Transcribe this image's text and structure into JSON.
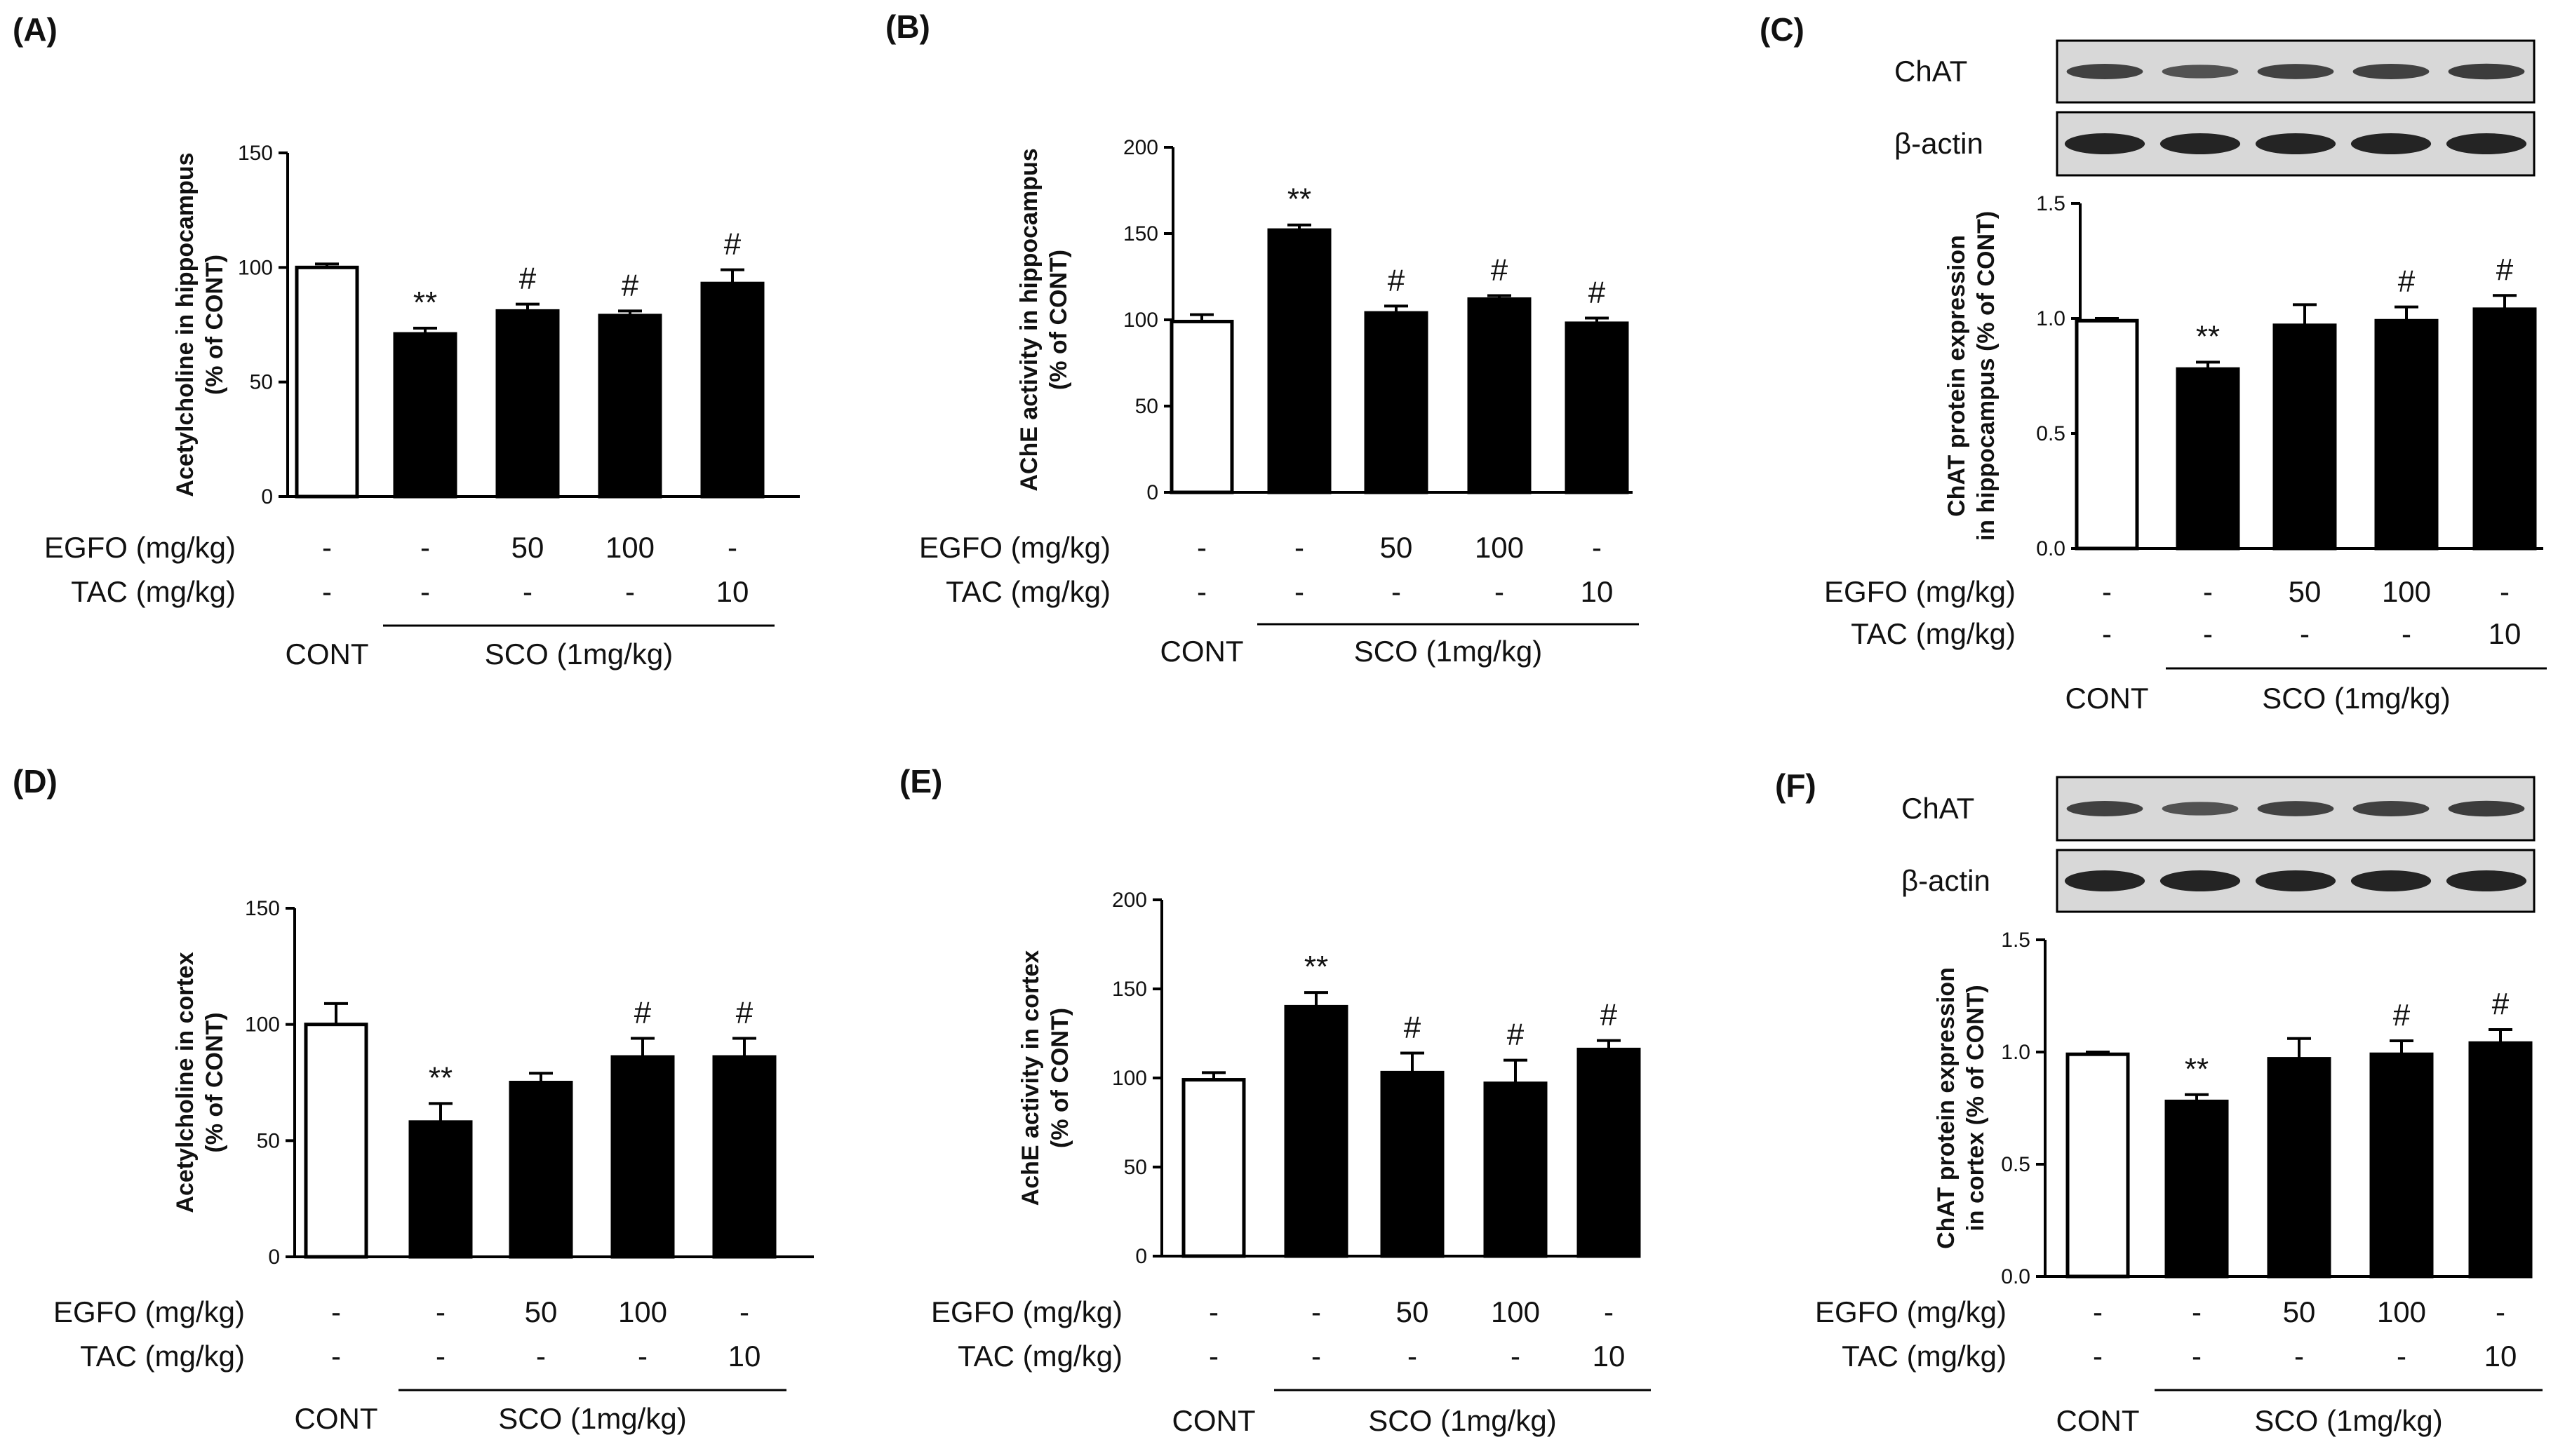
{
  "figure": {
    "row_labels": {
      "egfo": "EGFO (mg/kg)",
      "tac": "TAC (mg/kg)"
    },
    "group_labels": {
      "cont": "CONT",
      "sco": "SCO (1mg/kg)"
    },
    "colors": {
      "control_bar": "#ffffff",
      "treated_bar": "#000000",
      "line": "#000000",
      "band": "#1a1a1a",
      "blot_bg": "#d8d8d8"
    },
    "blot_labels": {
      "chat": "ChAT",
      "actin": "β-actin"
    }
  },
  "chart_data": [
    {
      "panel": "(A)",
      "type": "bar",
      "ylabel": [
        "Acetylcholine in hippocampus",
        "(% of CONT)"
      ],
      "ylim": [
        0,
        150
      ],
      "yticks": [
        0,
        50,
        100,
        150
      ],
      "values": [
        100,
        71,
        81,
        79,
        93
      ],
      "errors": [
        1.5,
        2.5,
        3,
        2,
        6
      ],
      "annotations": [
        "",
        "**",
        "#",
        "#",
        "#"
      ],
      "egfo": [
        "-",
        "-",
        "50",
        "100",
        "-"
      ],
      "tac": [
        "-",
        "-",
        "-",
        "-",
        "10"
      ]
    },
    {
      "panel": "(B)",
      "type": "bar",
      "ylabel": [
        "AChE activity in hippocampus",
        "(% of CONT)"
      ],
      "ylim": [
        0,
        200
      ],
      "yticks": [
        0,
        50,
        100,
        150,
        200
      ],
      "values": [
        99,
        152,
        104,
        112,
        98
      ],
      "errors": [
        4,
        3,
        4,
        2,
        3
      ],
      "annotations": [
        "",
        "**",
        "#",
        "#",
        "#"
      ],
      "egfo": [
        "-",
        "-",
        "50",
        "100",
        "-"
      ],
      "tac": [
        "-",
        "-",
        "-",
        "-",
        "10"
      ]
    },
    {
      "panel": "(C)",
      "type": "bar",
      "ylabel": [
        "ChAT protein expression",
        "in hippocampus (% of CONT)"
      ],
      "ylim": [
        0,
        1.5
      ],
      "yticks": [
        "0.0",
        "0.5",
        "1.0",
        "1.5"
      ],
      "values": [
        0.99,
        0.78,
        0.97,
        0.99,
        1.04
      ],
      "errors": [
        0.01,
        0.03,
        0.09,
        0.06,
        0.06
      ],
      "annotations": [
        "",
        "**",
        "",
        "#",
        "#"
      ],
      "egfo": [
        "-",
        "-",
        "50",
        "100",
        "-"
      ],
      "tac": [
        "-",
        "-",
        "-",
        "-",
        "10"
      ]
    },
    {
      "panel": "(D)",
      "type": "bar",
      "ylabel": [
        "Acetylcholine in cortex",
        "(% of CONT)"
      ],
      "ylim": [
        0,
        150
      ],
      "yticks": [
        0,
        50,
        100,
        150
      ],
      "values": [
        100,
        58,
        75,
        86,
        86
      ],
      "errors": [
        9,
        8,
        4,
        8,
        8
      ],
      "annotations": [
        "",
        "**",
        "",
        "#",
        "#"
      ],
      "egfo": [
        "-",
        "-",
        "50",
        "100",
        "-"
      ],
      "tac": [
        "-",
        "-",
        "-",
        "-",
        "10"
      ]
    },
    {
      "panel": "(E)",
      "type": "bar",
      "ylabel": [
        "AchE activity in cortex",
        "(% of CONT)"
      ],
      "ylim": [
        0,
        200
      ],
      "yticks": [
        0,
        50,
        100,
        150,
        200
      ],
      "values": [
        99,
        140,
        103,
        97,
        116
      ],
      "errors": [
        4,
        8,
        11,
        13,
        5
      ],
      "annotations": [
        "",
        "**",
        "#",
        "#",
        "#"
      ],
      "egfo": [
        "-",
        "-",
        "50",
        "100",
        "-"
      ],
      "tac": [
        "-",
        "-",
        "-",
        "-",
        "10"
      ]
    },
    {
      "panel": "(F)",
      "type": "bar",
      "ylabel": [
        "ChAT protein expression",
        "in cortex (% of CONT)"
      ],
      "ylim": [
        0,
        1.5
      ],
      "yticks": [
        "0.0",
        "0.5",
        "1.0",
        "1.5"
      ],
      "values": [
        0.99,
        0.78,
        0.97,
        0.99,
        1.04
      ],
      "errors": [
        0.01,
        0.03,
        0.09,
        0.06,
        0.06
      ],
      "annotations": [
        "",
        "**",
        "",
        "#",
        "#"
      ],
      "egfo": [
        "-",
        "-",
        "50",
        "100",
        "-"
      ],
      "tac": [
        "-",
        "-",
        "-",
        "-",
        "10"
      ]
    }
  ]
}
